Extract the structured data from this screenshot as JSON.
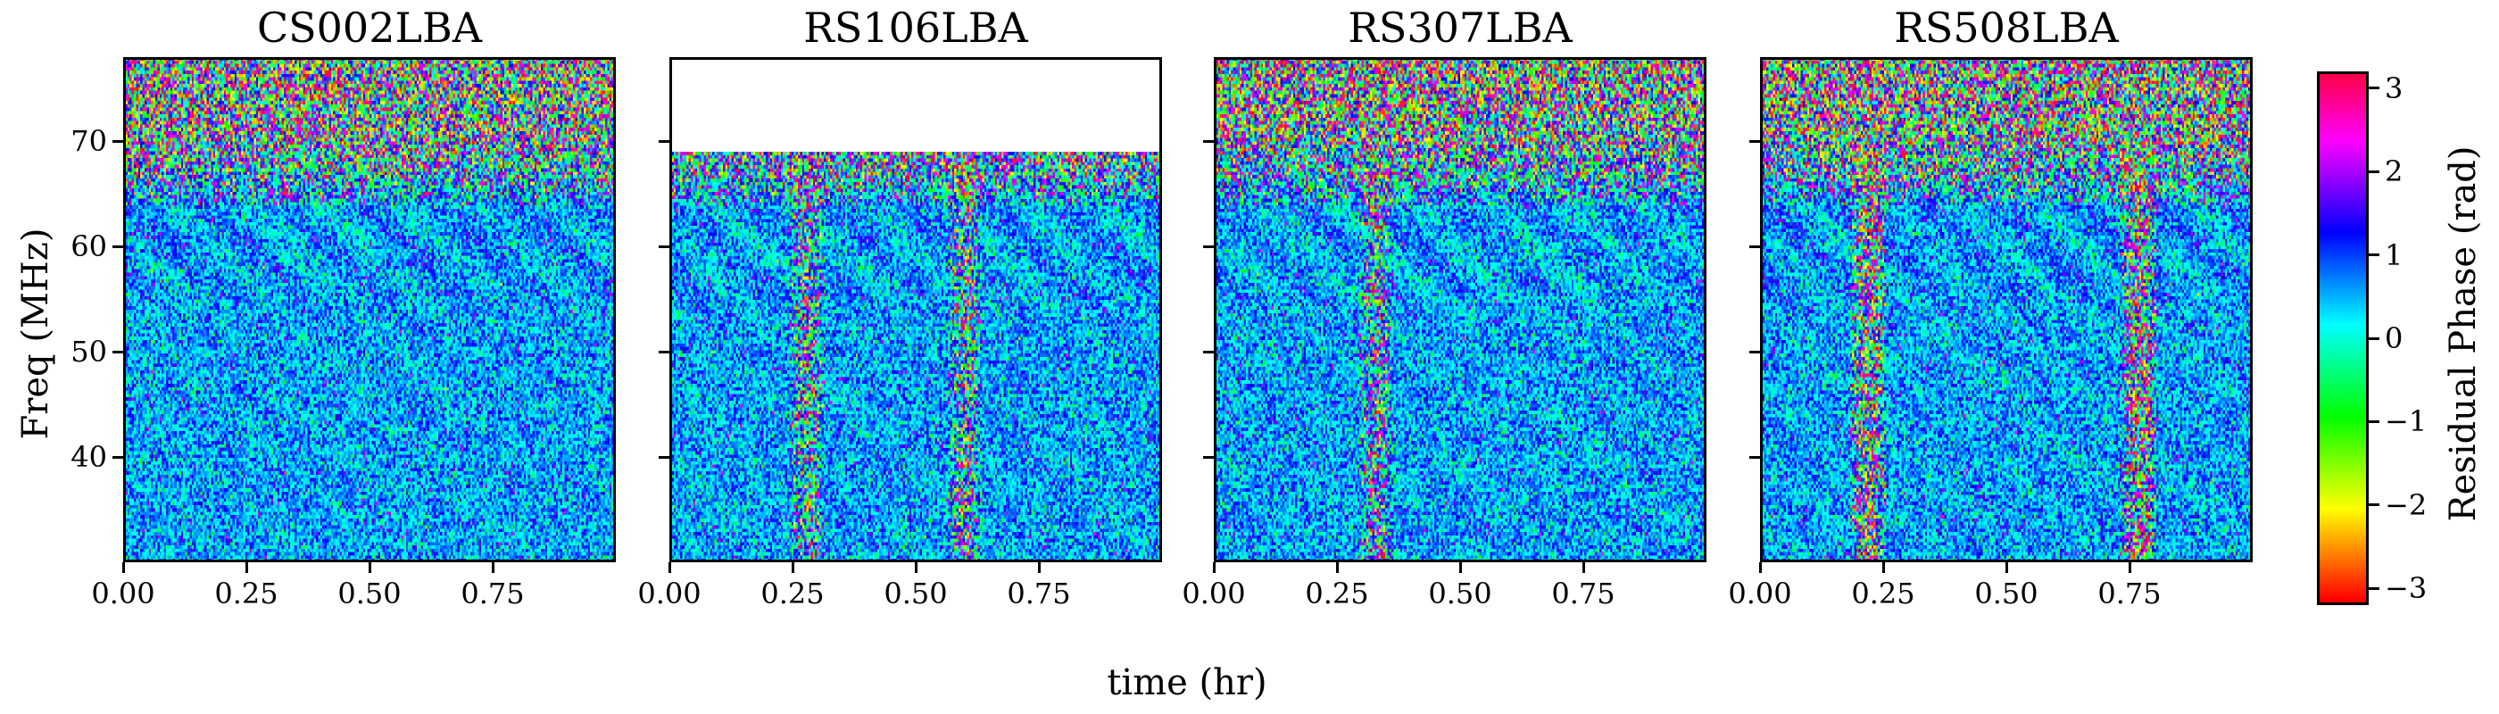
{
  "chart_data": {
    "type": "heatmap",
    "xlabel": "time (hr)",
    "ylabel": "Freq (MHz)",
    "xlim": [
      0.0,
      1.0
    ],
    "ylim": [
      30,
      78
    ],
    "x_ticks": [
      0.0,
      0.25,
      0.5,
      0.75
    ],
    "x_tick_labels": [
      "0.00",
      "0.25",
      "0.50",
      "0.75"
    ],
    "y_ticks": [
      40,
      50,
      60,
      70
    ],
    "y_tick_labels": [
      "40",
      "50",
      "60",
      "70"
    ],
    "colormap": "hsv",
    "colorbar": {
      "label": "Residual Phase (rad)",
      "range": [
        -3.2,
        3.2
      ],
      "ticks": [
        -3,
        -2,
        -1,
        0,
        1,
        2,
        3
      ],
      "tick_labels": [
        "−3",
        "−2",
        "−1",
        "0",
        "1",
        "2",
        "3"
      ]
    },
    "panels": [
      {
        "title": "CS002LBA",
        "freq_max": 78,
        "artifact_times": [],
        "artifact_noise_scale": 0
      },
      {
        "title": "RS106LBA",
        "freq_max": 69,
        "artifact_times": [
          0.28,
          0.6
        ],
        "artifact_noise_scale": 1
      },
      {
        "title": "RS307LBA",
        "freq_max": 78,
        "artifact_times": [
          0.33
        ],
        "artifact_noise_scale": 1
      },
      {
        "title": "RS508LBA",
        "freq_max": 78,
        "artifact_times": [
          0.22,
          0.77
        ],
        "artifact_noise_scale": 2
      }
    ]
  }
}
